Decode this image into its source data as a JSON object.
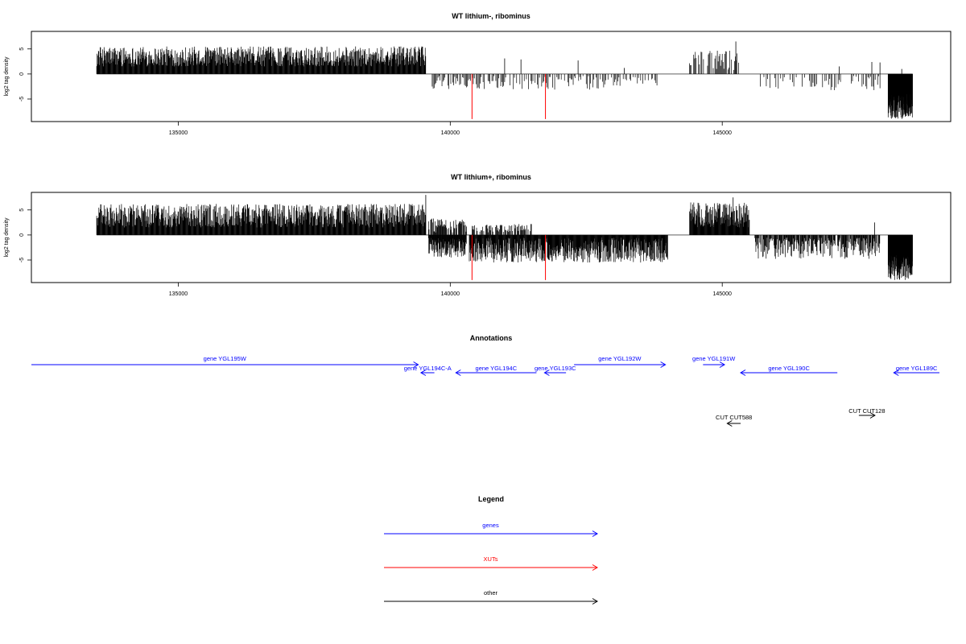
{
  "chart_data": [
    {
      "type": "bar",
      "title": "WT lithium-, ribominus",
      "ylabel": "log2 tag density",
      "xlim": [
        132300,
        149200
      ],
      "ylim": [
        -9.5,
        8.5
      ],
      "xticks": [
        135000,
        140000,
        145000
      ],
      "yticks": [
        5,
        0,
        -5
      ],
      "marker_color": "#ff0000",
      "markers": [
        {
          "x": 140400,
          "y": -9.0
        },
        {
          "x": 141750,
          "y": -9.0
        }
      ],
      "segments": [
        {
          "from": 133500,
          "to": 139550,
          "sign": 1,
          "lo": 1.5,
          "hi": 5.5,
          "step": 8,
          "density": 1.0
        },
        {
          "from": 139650,
          "to": 141050,
          "sign": -1,
          "lo": 0.4,
          "hi": 3.0,
          "step": 18,
          "density": 0.75
        },
        {
          "from": 141100,
          "to": 143800,
          "sign": -1,
          "lo": 0.4,
          "hi": 3.2,
          "step": 20,
          "density": 0.6
        },
        {
          "from": 144400,
          "to": 145300,
          "sign": 1,
          "lo": 0.5,
          "hi": 4.8,
          "step": 15,
          "density": 0.7
        },
        {
          "from": 145700,
          "to": 147900,
          "sign": -1,
          "lo": 0.3,
          "hi": 3.3,
          "step": 22,
          "density": 0.55
        },
        {
          "from": 148050,
          "to": 148500,
          "sign": -1,
          "lo": 4.0,
          "hi": 9.0,
          "step": 4,
          "density": 1.0
        }
      ],
      "spikes": [
        {
          "x": 141000,
          "y": 3.1
        },
        {
          "x": 141300,
          "y": 2.9
        },
        {
          "x": 142350,
          "y": 2.7
        },
        {
          "x": 143200,
          "y": 1.2
        },
        {
          "x": 147150,
          "y": 1.5
        },
        {
          "x": 147750,
          "y": 2.4
        },
        {
          "x": 147900,
          "y": 2.3
        },
        {
          "x": 148300,
          "y": 1.0
        },
        {
          "x": 145250,
          "y": 6.5
        }
      ]
    },
    {
      "type": "bar",
      "title": "WT lithium+, ribominus",
      "ylabel": "log2 tag density",
      "xlim": [
        132300,
        149200
      ],
      "ylim": [
        -9.5,
        8.5
      ],
      "xticks": [
        135000,
        140000,
        145000
      ],
      "yticks": [
        5,
        0,
        -5
      ],
      "marker_color": "#ff0000",
      "markers": [
        {
          "x": 140400,
          "y": -9.0
        },
        {
          "x": 141750,
          "y": -9.0
        }
      ],
      "segments": [
        {
          "from": 133500,
          "to": 139550,
          "sign": 1,
          "lo": 1.5,
          "hi": 6.2,
          "step": 8,
          "density": 1.0
        },
        {
          "from": 139600,
          "to": 140300,
          "sign": -1,
          "lo": 0.5,
          "hi": 4.5,
          "step": 6,
          "density": 1.0
        },
        {
          "from": 139600,
          "to": 140300,
          "sign": 1,
          "lo": 0.5,
          "hi": 3.3,
          "step": 10,
          "density": 0.8
        },
        {
          "from": 140400,
          "to": 141500,
          "sign": 1,
          "lo": 0.5,
          "hi": 2.2,
          "step": 12,
          "density": 0.7
        },
        {
          "from": 140350,
          "to": 144000,
          "sign": -1,
          "lo": 0.5,
          "hi": 5.5,
          "step": 7,
          "density": 1.0
        },
        {
          "from": 144400,
          "to": 145500,
          "sign": 1,
          "lo": 1.5,
          "hi": 6.5,
          "step": 7,
          "density": 1.0
        },
        {
          "from": 145600,
          "to": 147900,
          "sign": -1,
          "lo": 0.5,
          "hi": 4.8,
          "step": 9,
          "density": 0.9
        },
        {
          "from": 148050,
          "to": 148500,
          "sign": -1,
          "lo": 4.0,
          "hi": 9.0,
          "step": 4,
          "density": 1.0
        }
      ],
      "spikes": [
        {
          "x": 139550,
          "y": 8.0
        },
        {
          "x": 145200,
          "y": 7.5
        },
        {
          "x": 147800,
          "y": 2.5
        }
      ]
    }
  ],
  "annotations": {
    "title": "Annotations",
    "genes_color": "#0000ff",
    "other_color": "#000000",
    "items": [
      {
        "label": "gene YGL195W",
        "x1": 132300,
        "x2": 139500,
        "row": 0,
        "dir": "right",
        "kind": "gene"
      },
      {
        "label": "gene YGL194C-A",
        "x1": 139800,
        "x2": 139550,
        "row": 1,
        "dir": "left",
        "kind": "gene"
      },
      {
        "label": "gene YGL194C",
        "x1": 141700,
        "x2": 140200,
        "row": 1,
        "dir": "left",
        "kind": "gene"
      },
      {
        "label": "gene YGL193C",
        "x1": 142250,
        "x2": 141850,
        "row": 1,
        "dir": "left",
        "kind": "gene"
      },
      {
        "label": "gene YGL192W",
        "x1": 142400,
        "x2": 144100,
        "row": 0,
        "dir": "right",
        "kind": "gene"
      },
      {
        "label": "gene YGL191W",
        "x1": 144800,
        "x2": 145200,
        "row": 0,
        "dir": "right",
        "kind": "gene"
      },
      {
        "label": "gene YGL190C",
        "x1": 147300,
        "x2": 145500,
        "row": 1,
        "dir": "left",
        "kind": "gene"
      },
      {
        "label": "gene YGL189C",
        "x1": 149200,
        "x2": 148350,
        "row": 1,
        "dir": "left",
        "kind": "gene"
      },
      {
        "label": "CUT CUT588",
        "x1": 145500,
        "x2": 145250,
        "row": 2,
        "dir": "left",
        "kind": "other"
      },
      {
        "label": "CUT CUT128",
        "x1": 147700,
        "x2": 148000,
        "row": 3,
        "dir": "right",
        "kind": "other"
      }
    ]
  },
  "legend": {
    "title": "Legend",
    "items": [
      {
        "label": "genes",
        "color": "#0000ff"
      },
      {
        "label": "XUTs",
        "color": "#ff0000"
      },
      {
        "label": "other",
        "color": "#000000"
      }
    ]
  }
}
